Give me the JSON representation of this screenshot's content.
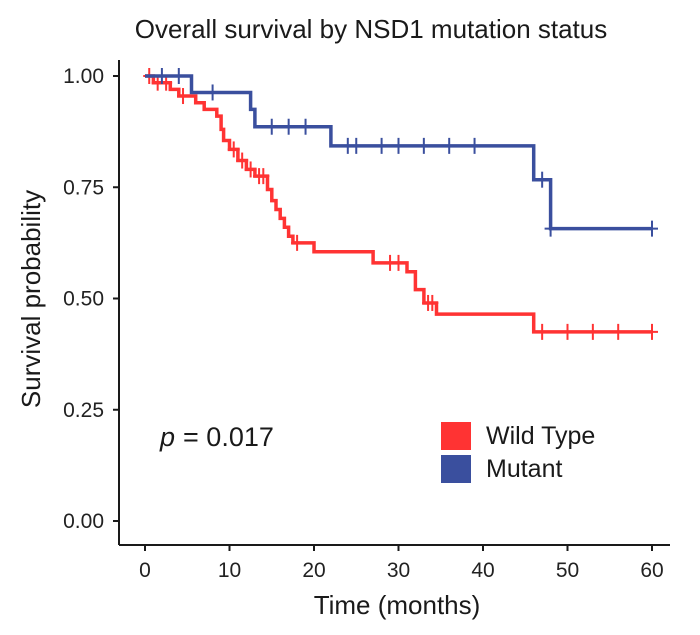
{
  "chart_data": {
    "type": "line",
    "subtype": "kaplan-meier",
    "title": "Overall survival by NSD1 mutation status",
    "xlabel": "Time (months)",
    "ylabel": "Survival probability",
    "xlim": [
      0,
      60
    ],
    "ylim": [
      0,
      1
    ],
    "x_ticks": [
      "0",
      "10",
      "20",
      "30",
      "40",
      "50",
      "60"
    ],
    "y_ticks": [
      "0.00",
      "0.25",
      "0.50",
      "0.75",
      "1.00"
    ],
    "grid": false,
    "legend_position": "bottom-right",
    "annotation": {
      "p_symbol": "p",
      "p_text": "= 0.017"
    },
    "series": [
      {
        "name": "Wild Type",
        "color": "#ff3333",
        "steps": [
          [
            0,
            1.0
          ],
          [
            1,
            0.985
          ],
          [
            3,
            0.97
          ],
          [
            4,
            0.955
          ],
          [
            6,
            0.94
          ],
          [
            7,
            0.925
          ],
          [
            8.5,
            0.91
          ],
          [
            9,
            0.88
          ],
          [
            9.3,
            0.855
          ],
          [
            10,
            0.835
          ],
          [
            11,
            0.81
          ],
          [
            12,
            0.79
          ],
          [
            13,
            0.775
          ],
          [
            14.5,
            0.745
          ],
          [
            15,
            0.72
          ],
          [
            15.5,
            0.7
          ],
          [
            16,
            0.68
          ],
          [
            16.5,
            0.66
          ],
          [
            17,
            0.64
          ],
          [
            17.5,
            0.625
          ],
          [
            20,
            0.605
          ],
          [
            27,
            0.58
          ],
          [
            31,
            0.56
          ],
          [
            32,
            0.52
          ],
          [
            33,
            0.49
          ],
          [
            34.5,
            0.465
          ],
          [
            46,
            0.425
          ],
          [
            60,
            0.425
          ]
        ],
        "censor_times": [
          0.5,
          1.5,
          2.5,
          4.5,
          10.5,
          11.5,
          12.5,
          13.5,
          14,
          18,
          29,
          30,
          33.5,
          34,
          47,
          50,
          53,
          56,
          60
        ]
      },
      {
        "name": "Mutant",
        "color": "#3a4f9e",
        "steps": [
          [
            0,
            1.0
          ],
          [
            5.5,
            0.963
          ],
          [
            12.5,
            0.925
          ],
          [
            13,
            0.886
          ],
          [
            22,
            0.843
          ],
          [
            46,
            0.767
          ],
          [
            48,
            0.657
          ],
          [
            60,
            0.657
          ]
        ],
        "censor_times": [
          2,
          4,
          8,
          15,
          17,
          19,
          24,
          25,
          28,
          30,
          33,
          36,
          39,
          47,
          48,
          60
        ]
      }
    ]
  }
}
